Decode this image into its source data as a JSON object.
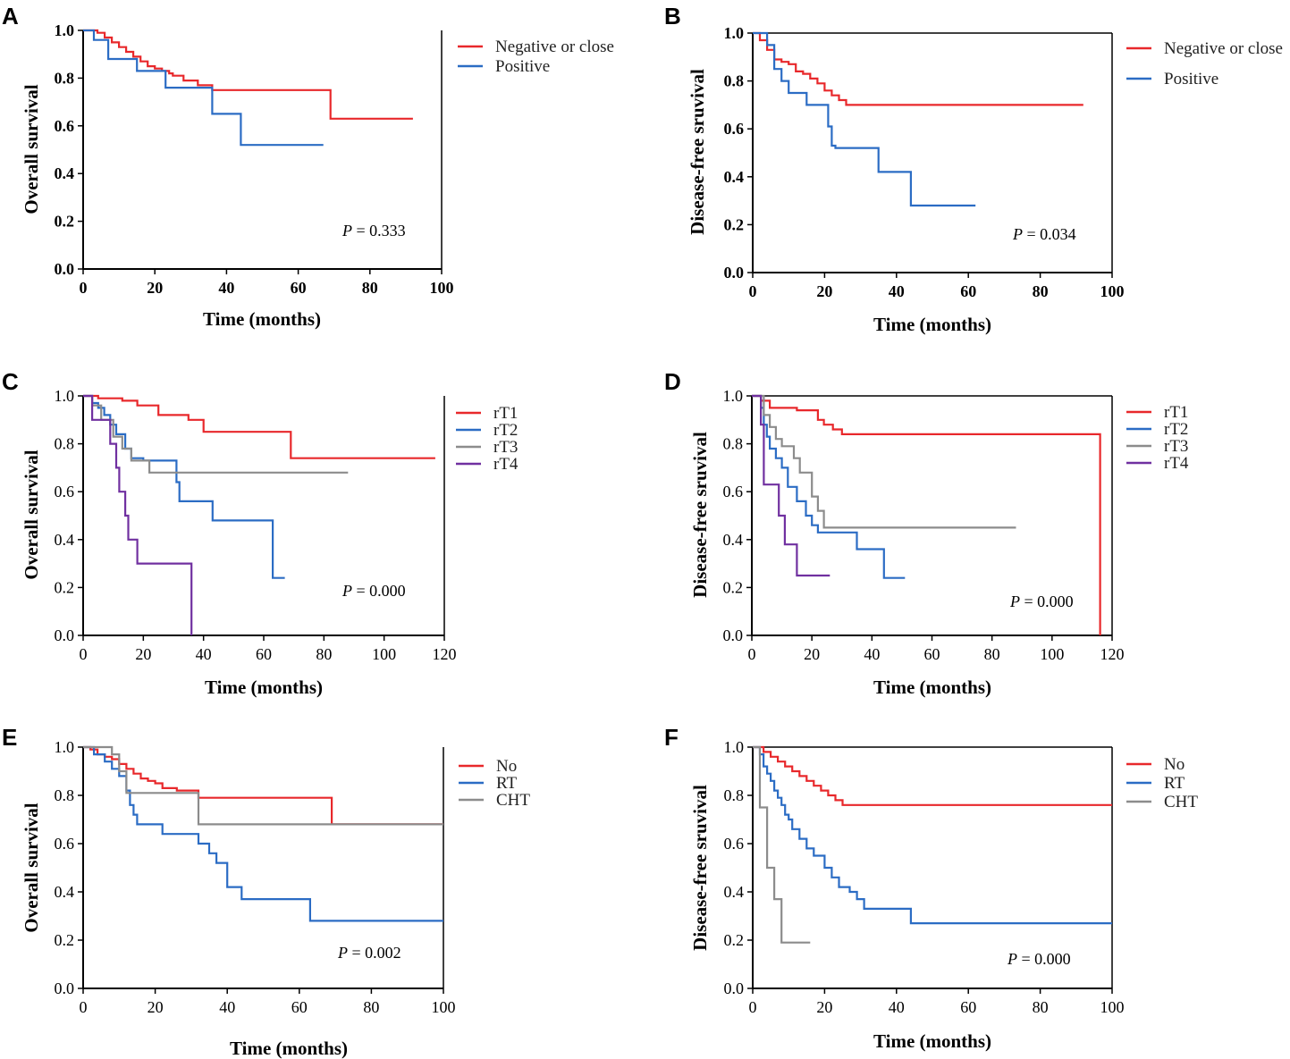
{
  "figure_title": "",
  "colors": {
    "red": "#e8282b",
    "blue": "#2b6cc4",
    "gray": "#8c8c8c",
    "purple": "#7030a0",
    "axis": "#000000"
  },
  "chart_data": [
    {
      "panel": "A",
      "type": "line",
      "step": true,
      "xlabel": "Time (months)",
      "ylabel": "Overall survival",
      "xlim": [
        0,
        100
      ],
      "ylim": [
        0,
        1.0
      ],
      "xticks": [
        "0",
        "20",
        "40",
        "60",
        "80",
        "100"
      ],
      "yticks": [
        "0.0",
        "0.2",
        "0.4",
        "0.6",
        "0.8",
        "1.0"
      ],
      "bold_ticks": true,
      "p_label": "P",
      "p_value": "= 0.333",
      "legend": [
        "Negative or close",
        "Positive"
      ],
      "series": [
        {
          "name": "Negative or close",
          "color": "red",
          "x": [
            0,
            4,
            6,
            8,
            10,
            12,
            14,
            16,
            18,
            20,
            22,
            24,
            25,
            28,
            32,
            36,
            45,
            69,
            69,
            92
          ],
          "y": [
            1.0,
            0.99,
            0.97,
            0.95,
            0.93,
            0.91,
            0.89,
            0.87,
            0.85,
            0.84,
            0.83,
            0.82,
            0.81,
            0.79,
            0.77,
            0.75,
            0.75,
            0.75,
            0.63,
            0.63
          ]
        },
        {
          "name": "Positive",
          "color": "blue",
          "x": [
            0,
            3,
            7,
            15,
            23,
            36,
            44,
            67
          ],
          "y": [
            1.0,
            0.96,
            0.88,
            0.83,
            0.76,
            0.65,
            0.52,
            0.52
          ]
        }
      ]
    },
    {
      "panel": "B",
      "type": "line",
      "step": true,
      "xlabel": "Time (months)",
      "ylabel": "Disease-free sruvival",
      "xlim": [
        0,
        100
      ],
      "ylim": [
        0,
        1.0
      ],
      "xticks": [
        "0",
        "20",
        "40",
        "60",
        "80",
        "100"
      ],
      "yticks": [
        "0.0",
        "0.2",
        "0.4",
        "0.6",
        "0.8",
        "1.0"
      ],
      "bold_ticks": true,
      "p_label": "P",
      "p_value": "= 0.034",
      "legend": [
        "Negative or close",
        "Positive"
      ],
      "series": [
        {
          "name": "Negative or close",
          "color": "red",
          "x": [
            0,
            2,
            4,
            6,
            8,
            10,
            12,
            14,
            16,
            18,
            20,
            22,
            24,
            26,
            92
          ],
          "y": [
            1.0,
            0.97,
            0.93,
            0.89,
            0.88,
            0.87,
            0.84,
            0.83,
            0.81,
            0.79,
            0.76,
            0.74,
            0.72,
            0.7,
            0.7
          ]
        },
        {
          "name": "Positive",
          "color": "blue",
          "x": [
            0,
            4,
            6,
            8,
            10,
            15,
            21,
            22,
            23,
            35,
            44,
            62
          ],
          "y": [
            1.0,
            0.95,
            0.85,
            0.8,
            0.75,
            0.7,
            0.61,
            0.53,
            0.52,
            0.42,
            0.28,
            0.28
          ]
        }
      ]
    },
    {
      "panel": "C",
      "type": "line",
      "step": true,
      "xlabel": "Time (months)",
      "ylabel": "Overall survival",
      "xlim": [
        0,
        120
      ],
      "ylim": [
        0,
        1.0
      ],
      "xticks": [
        "0",
        "20",
        "40",
        "60",
        "80",
        "100",
        "120"
      ],
      "yticks": [
        "0.0",
        "0.2",
        "0.4",
        "0.6",
        "0.8",
        "1.0"
      ],
      "bold_ticks": false,
      "p_label": "P",
      "p_value": "= 0.000",
      "legend": [
        "rT1",
        "rT2",
        "rT3",
        "rT4"
      ],
      "series": [
        {
          "name": "rT1",
          "color": "red",
          "x": [
            0,
            5,
            13,
            18,
            25,
            35,
            40,
            69,
            117
          ],
          "y": [
            1.0,
            0.99,
            0.98,
            0.96,
            0.92,
            0.9,
            0.85,
            0.74,
            0.74
          ]
        },
        {
          "name": "rT2",
          "color": "blue",
          "x": [
            0,
            3,
            5,
            7,
            9,
            11,
            14,
            16,
            20,
            31,
            32,
            43,
            63,
            67
          ],
          "y": [
            1.0,
            0.97,
            0.95,
            0.92,
            0.88,
            0.84,
            0.78,
            0.74,
            0.73,
            0.64,
            0.56,
            0.48,
            0.24,
            0.24
          ]
        },
        {
          "name": "rT3",
          "color": "gray",
          "x": [
            0,
            3,
            6,
            10,
            13,
            16,
            22,
            88
          ],
          "y": [
            1.0,
            0.96,
            0.9,
            0.83,
            0.78,
            0.73,
            0.68,
            0.68
          ]
        },
        {
          "name": "rT4",
          "color": "purple",
          "x": [
            0,
            3,
            9,
            11,
            12,
            14,
            15,
            18,
            36,
            36
          ],
          "y": [
            1.0,
            0.9,
            0.8,
            0.7,
            0.6,
            0.5,
            0.4,
            0.3,
            0.3,
            0.0
          ]
        }
      ]
    },
    {
      "panel": "D",
      "type": "line",
      "step": true,
      "xlabel": "Time (months)",
      "ylabel": "Disease-free sruvival",
      "xlim": [
        0,
        120
      ],
      "ylim": [
        0,
        1.0
      ],
      "xticks": [
        "0",
        "20",
        "40",
        "60",
        "80",
        "100",
        "120"
      ],
      "yticks": [
        "0.0",
        "0.2",
        "0.4",
        "0.6",
        "0.8",
        "1.0"
      ],
      "bold_ticks": false,
      "p_label": "P",
      "p_value": "= 0.000",
      "legend": [
        "rT1",
        "rT2",
        "rT3",
        "rT4"
      ],
      "series": [
        {
          "name": "rT1",
          "color": "red",
          "x": [
            0,
            3,
            6,
            15,
            22,
            24,
            27,
            30,
            116,
            116
          ],
          "y": [
            1.0,
            0.98,
            0.95,
            0.94,
            0.9,
            0.88,
            0.86,
            0.84,
            0.84,
            0.0
          ]
        },
        {
          "name": "rT2",
          "color": "blue",
          "x": [
            0,
            3,
            4,
            5,
            6,
            8,
            10,
            12,
            15,
            18,
            20,
            22,
            35,
            44,
            51
          ],
          "y": [
            1.0,
            0.95,
            0.88,
            0.83,
            0.78,
            0.74,
            0.7,
            0.62,
            0.56,
            0.5,
            0.46,
            0.43,
            0.36,
            0.24,
            0.24
          ]
        },
        {
          "name": "rT3",
          "color": "gray",
          "x": [
            0,
            4,
            6,
            8,
            10,
            14,
            16,
            20,
            22,
            24,
            88
          ],
          "y": [
            1.0,
            0.92,
            0.87,
            0.82,
            0.79,
            0.74,
            0.68,
            0.58,
            0.52,
            0.45,
            0.45
          ]
        },
        {
          "name": "rT4",
          "color": "purple",
          "x": [
            0,
            3,
            4,
            9,
            11,
            15,
            26
          ],
          "y": [
            1.0,
            0.88,
            0.63,
            0.5,
            0.38,
            0.25,
            0.25
          ]
        }
      ]
    },
    {
      "panel": "E",
      "type": "line",
      "step": true,
      "xlabel": "Time (months)",
      "ylabel": "Overall survival",
      "xlim": [
        0,
        100
      ],
      "ylim": [
        0,
        1.0
      ],
      "xticks": [
        "0",
        "20",
        "40",
        "60",
        "80",
        "100"
      ],
      "yticks": [
        "0.0",
        "0.2",
        "0.4",
        "0.6",
        "0.8",
        "1.0"
      ],
      "bold_ticks": false,
      "p_label": "P",
      "p_value": "= 0.002",
      "legend": [
        "No",
        "RT",
        "CHT"
      ],
      "series": [
        {
          "name": "No",
          "color": "red",
          "x": [
            0,
            2,
            4,
            6,
            8,
            10,
            12,
            14,
            16,
            18,
            20,
            22,
            26,
            32,
            69,
            100
          ],
          "y": [
            1.0,
            0.99,
            0.97,
            0.96,
            0.95,
            0.93,
            0.91,
            0.89,
            0.87,
            0.86,
            0.85,
            0.83,
            0.82,
            0.79,
            0.68,
            0.68
          ]
        },
        {
          "name": "RT",
          "color": "blue",
          "x": [
            0,
            3,
            6,
            8,
            10,
            12,
            13,
            14,
            15,
            22,
            32,
            35,
            37,
            40,
            44,
            63,
            100
          ],
          "y": [
            1.0,
            0.97,
            0.94,
            0.91,
            0.88,
            0.82,
            0.76,
            0.72,
            0.68,
            0.64,
            0.6,
            0.56,
            0.52,
            0.42,
            0.37,
            0.28,
            0.28
          ]
        },
        {
          "name": "CHT",
          "color": "gray",
          "x": [
            0,
            8,
            10,
            12,
            32,
            100
          ],
          "y": [
            1.0,
            0.97,
            0.9,
            0.81,
            0.68,
            0.68
          ]
        }
      ]
    },
    {
      "panel": "F",
      "type": "line",
      "step": true,
      "xlabel": "Time (months)",
      "ylabel": "Disease-free sruvival",
      "xlim": [
        0,
        100
      ],
      "ylim": [
        0,
        1.0
      ],
      "xticks": [
        "0",
        "20",
        "40",
        "60",
        "80",
        "100"
      ],
      "yticks": [
        "0.0",
        "0.2",
        "0.4",
        "0.6",
        "0.8",
        "1.0"
      ],
      "bold_ticks": false,
      "p_label": "P",
      "p_value": "= 0.000",
      "legend": [
        "No",
        "RT",
        "CHT"
      ],
      "series": [
        {
          "name": "No",
          "color": "red",
          "x": [
            0,
            3,
            5,
            7,
            9,
            11,
            13,
            15,
            17,
            19,
            21,
            23,
            25,
            100
          ],
          "y": [
            1.0,
            0.98,
            0.96,
            0.94,
            0.92,
            0.9,
            0.88,
            0.86,
            0.84,
            0.82,
            0.8,
            0.78,
            0.76,
            0.76
          ]
        },
        {
          "name": "RT",
          "color": "blue",
          "x": [
            0,
            2,
            3,
            4,
            5,
            6,
            7,
            8,
            9,
            10,
            11,
            13,
            15,
            17,
            20,
            22,
            24,
            27,
            29,
            31,
            44,
            100
          ],
          "y": [
            1.0,
            0.97,
            0.92,
            0.89,
            0.86,
            0.82,
            0.79,
            0.76,
            0.72,
            0.7,
            0.66,
            0.62,
            0.58,
            0.55,
            0.5,
            0.46,
            0.42,
            0.4,
            0.37,
            0.33,
            0.27,
            0.27
          ]
        },
        {
          "name": "CHT",
          "color": "gray",
          "x": [
            0,
            2,
            4,
            5,
            6,
            8,
            16
          ],
          "y": [
            1.0,
            0.75,
            0.5,
            0.5,
            0.37,
            0.19,
            0.19
          ]
        }
      ]
    }
  ]
}
